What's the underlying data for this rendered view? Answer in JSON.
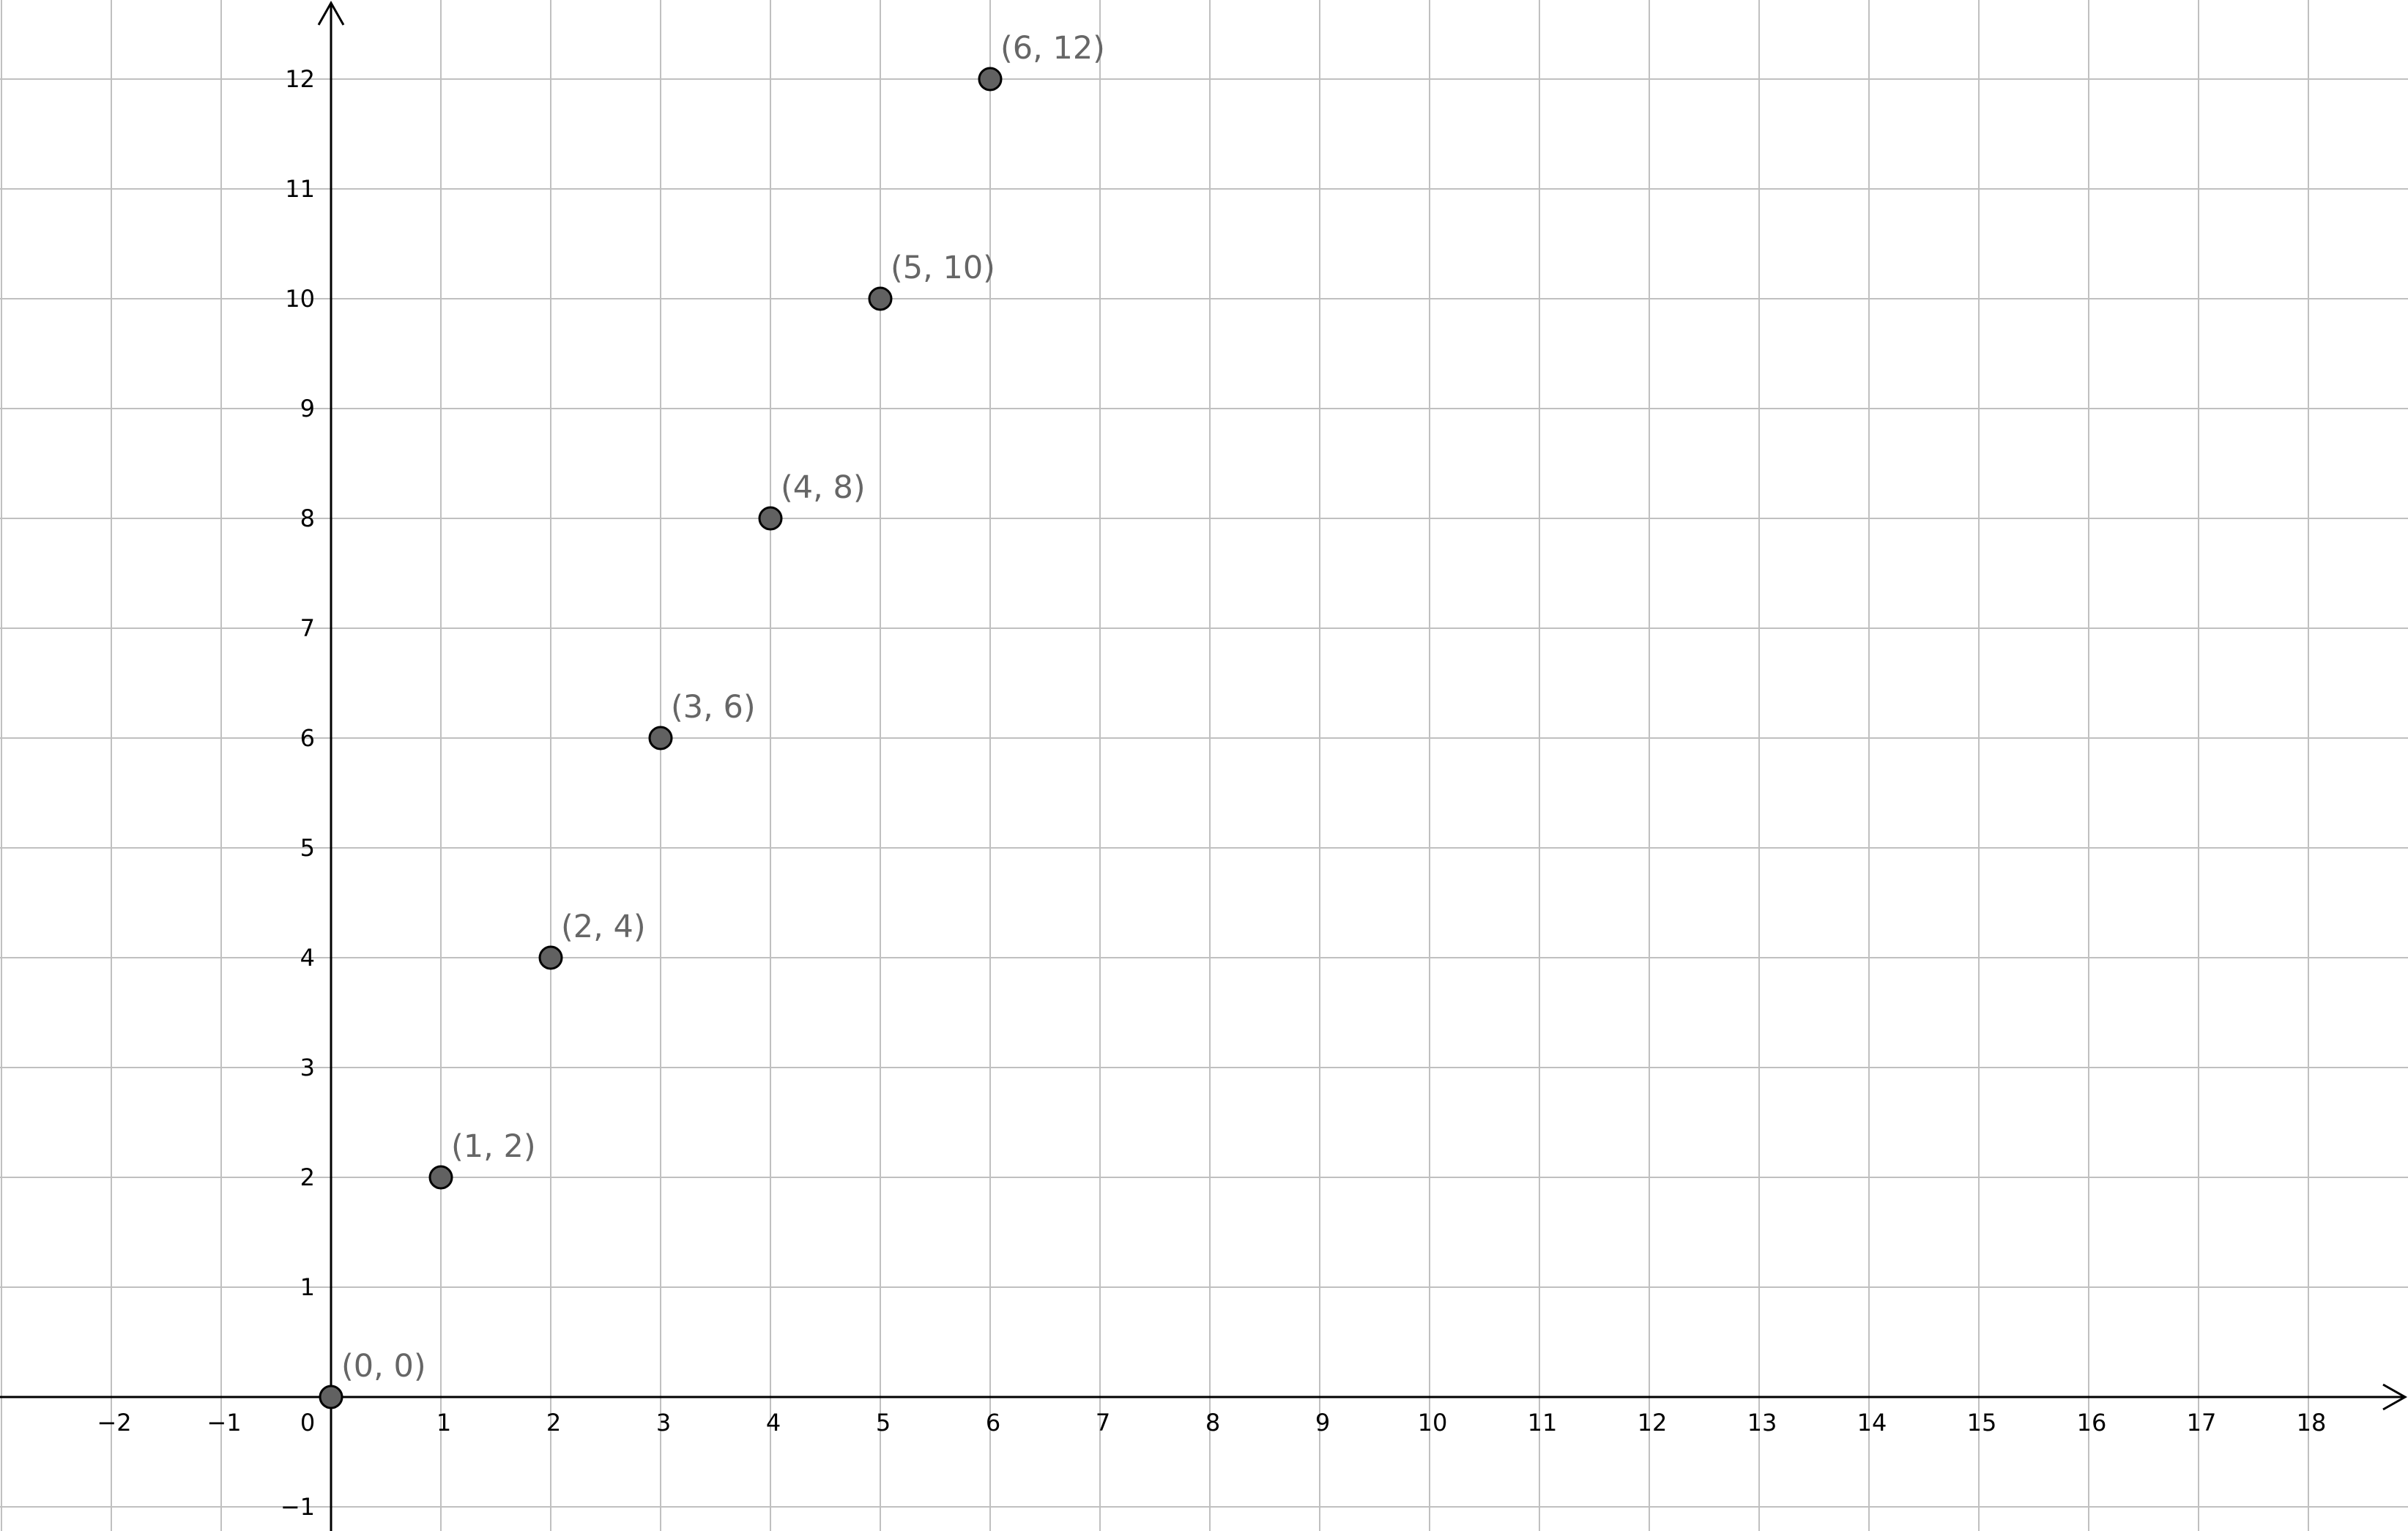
{
  "chart_data": {
    "type": "scatter",
    "title": "",
    "xlabel": "",
    "ylabel": "",
    "xlim": [
      -3,
      18.9
    ],
    "ylim": [
      -1.2,
      12.7
    ],
    "grid": true,
    "x_ticks": [
      -2,
      -1,
      0,
      1,
      2,
      3,
      4,
      5,
      6,
      7,
      8,
      9,
      10,
      11,
      12,
      13,
      14,
      15,
      16,
      17,
      18
    ],
    "y_ticks": [
      -1,
      1,
      2,
      3,
      4,
      5,
      6,
      7,
      8,
      9,
      10,
      11,
      12
    ],
    "series": [
      {
        "points": [
          {
            "x": 0,
            "y": 0,
            "label": "(0, 0)"
          },
          {
            "x": 1,
            "y": 2,
            "label": "(1, 2)"
          },
          {
            "x": 2,
            "y": 4,
            "label": "(2, 4)"
          },
          {
            "x": 3,
            "y": 6,
            "label": "(3, 6)"
          },
          {
            "x": 4,
            "y": 8,
            "label": "(4, 8)"
          },
          {
            "x": 5,
            "y": 10,
            "label": "(5, 10)"
          },
          {
            "x": 6,
            "y": 12,
            "label": "(6, 12)"
          }
        ]
      }
    ],
    "colors": {
      "grid": "#c0c0c0",
      "axis": "#000000",
      "point_fill": "#616161",
      "point_stroke": "#000000",
      "point_label": "#666666"
    }
  }
}
